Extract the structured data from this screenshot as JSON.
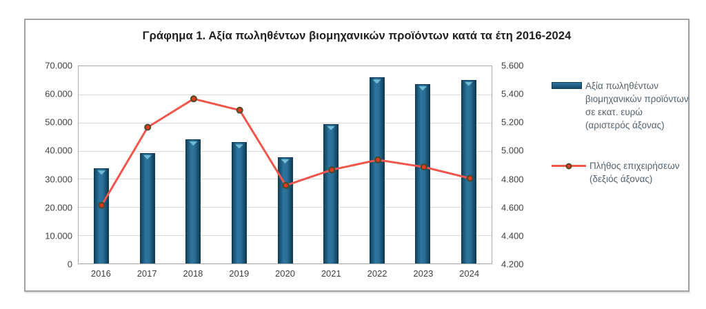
{
  "title": "Γράφημα 1. Αξία πωληθέντων βιομηχανικών προϊόντων κατά τα έτη 2016-2024",
  "chart_data": {
    "type": "combo-bar-line",
    "categories": [
      "2016",
      "2017",
      "2018",
      "2019",
      "2020",
      "2021",
      "2022",
      "2023",
      "2024"
    ],
    "series": [
      {
        "name": "Αξία πωληθέντων βιομηχανικών προϊόντων σε εκατ. ευρώ (αριστερός άξονας)",
        "type": "bar",
        "axis": "left",
        "values": [
          33700,
          39200,
          44000,
          43000,
          37700,
          49500,
          66000,
          63600,
          65200
        ]
      },
      {
        "name": "Πλήθος επιχειρήσεων (δεξιός άξονας)",
        "type": "line",
        "axis": "right",
        "values": [
          4620,
          5170,
          5370,
          5290,
          4760,
          4870,
          4940,
          4890,
          4810
        ]
      }
    ],
    "left_axis": {
      "min": 0,
      "max": 70000,
      "tick_labels_top_to_bottom": [
        "70.000",
        "60.000",
        "50.000",
        "40.000",
        "30.000",
        "20.000",
        "10.000",
        "0"
      ]
    },
    "right_axis": {
      "min": 4200,
      "max": 5600,
      "tick_labels_top_to_bottom": [
        "5.600",
        "5.400",
        "5.200",
        "5.000",
        "4.800",
        "4.600",
        "4.400",
        "4.200"
      ]
    },
    "grid": true,
    "legend_position": "right"
  },
  "colors": {
    "bar_fill": "#1d5f82",
    "bar_border": "#0d3a52",
    "bar_highlight": "#7cc8e0",
    "line": "#f2554b",
    "marker_fill": "#e23a20",
    "marker_ring": "#4a4a26",
    "gridline": "#d9d9d9",
    "plot_border": "#a6a6a6",
    "box_border": "#a3a3a3",
    "axis_text": "#3f3f3f",
    "title_text": "#1f1f1f",
    "legend_text": "#53626d"
  }
}
